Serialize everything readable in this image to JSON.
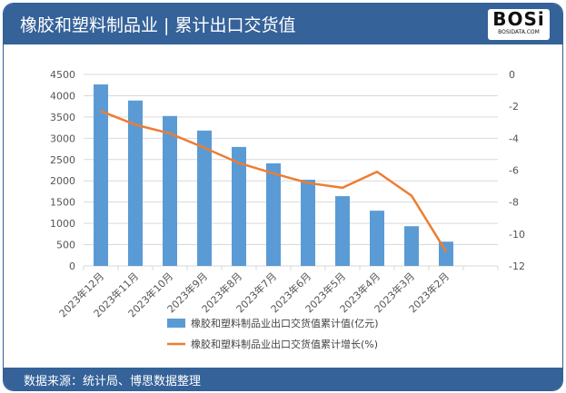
{
  "header": {
    "title": "橡胶和塑料制品业 | 累计出口交货值",
    "logo_text": "BOSi",
    "logo_sub": "BOSIDATA.COM"
  },
  "footer": {
    "source": "数据来源：统计局、博思数据整理"
  },
  "chart_data": {
    "type": "bar+line",
    "categories": [
      "2023年12月",
      "2023年11月",
      "2023年10月",
      "2023年9月",
      "2023年8月",
      "2023年7月",
      "2023年6月",
      "2023年5月",
      "2023年4月",
      "2023年3月",
      "2023年2月"
    ],
    "series": [
      {
        "name": "橡胶和塑料制品业出口交货值累计值(亿元)",
        "type": "bar",
        "axis": "left",
        "color": "#5b9bd5",
        "values": [
          4265,
          3887,
          3523,
          3181,
          2796,
          2410,
          2025,
          1640,
          1298,
          934,
          570
        ]
      },
      {
        "name": "橡胶和塑料制品业出口交货值累计增长(%)",
        "type": "line",
        "axis": "right",
        "color": "#ed7d31",
        "values": [
          -2.3,
          -3.15,
          -3.7,
          -4.6,
          -5.55,
          -6.2,
          -6.8,
          -7.1,
          -6.1,
          -7.6,
          -11.1
        ]
      }
    ],
    "y_left": {
      "min": 0,
      "max": 4500,
      "ticks": [
        0,
        500,
        1000,
        1500,
        2000,
        2500,
        3000,
        3500,
        4000,
        4500
      ]
    },
    "y_right": {
      "min": -12,
      "max": 0,
      "ticks": [
        0,
        -2,
        -4,
        -6,
        -8,
        -10,
        -12
      ]
    },
    "grid": true,
    "legend": "bottom"
  }
}
